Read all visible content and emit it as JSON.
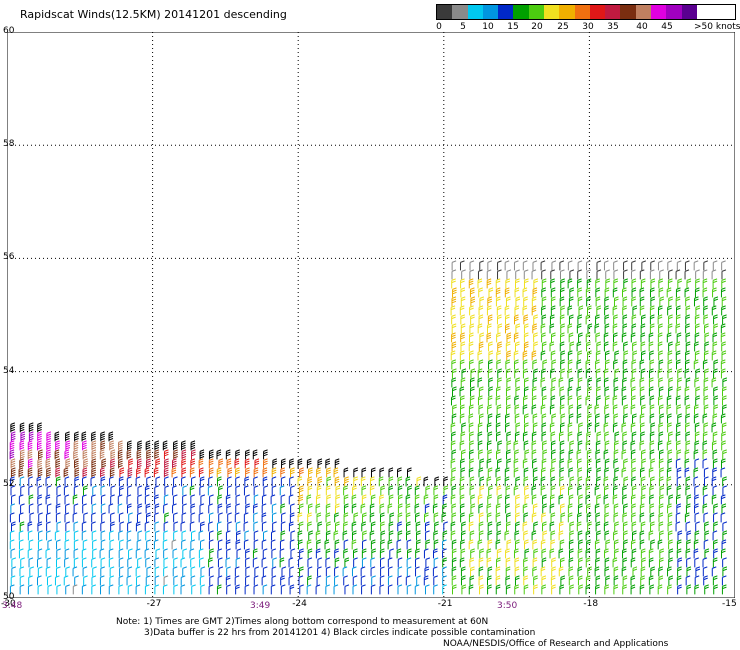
{
  "title": "Rapidscat Winds(12.5KM) 20141201 descending",
  "colorbar": {
    "colors": [
      "#3a3a3a",
      "#8a8a8a",
      "#00c8f0",
      "#0096e0",
      "#0028c8",
      "#00a000",
      "#4ccc10",
      "#f0e020",
      "#f0b000",
      "#f07010",
      "#e01818",
      "#c01a40",
      "#7a2e10",
      "#c08060",
      "#e000e0",
      "#a000c0",
      "#5a0090"
    ],
    "labels": [
      "0",
      "5",
      "10",
      "15",
      "20",
      "25",
      "30",
      "35",
      "40",
      "45",
      ">50 knots"
    ]
  },
  "map": {
    "lat_labels": [
      "60",
      "58",
      "56",
      "54",
      "52",
      "50"
    ],
    "lon_labels": [
      "-30",
      "-27",
      "-24",
      "-21",
      "-18",
      "-15"
    ],
    "time_labels": [
      "3:48",
      "3:49",
      "3:50"
    ]
  },
  "notes": {
    "line1": "Note: 1) Times are GMT 2)Times along bottom correspond to measurement at 60N",
    "line2": "3)Data buffer is 22 hrs from 20141201 4) Black circles indicate possible contamination",
    "line3": "NOAA/NESDIS/Office of Research and Applications"
  },
  "chart_data": {
    "type": "wind_barbs",
    "region": {
      "lon_range": [
        -30,
        -15
      ],
      "lat_range": [
        50,
        60
      ]
    },
    "speed_scale_knots": [
      0,
      5,
      10,
      15,
      20,
      25,
      30,
      35,
      40,
      45,
      50
    ],
    "swaths": [
      {
        "lon_range": [
          -30,
          -21
        ],
        "lat_range": [
          50,
          53.2
        ]
      },
      {
        "lon_range": [
          -21,
          -15
        ],
        "lat_range": [
          50,
          56
        ]
      }
    ]
  }
}
